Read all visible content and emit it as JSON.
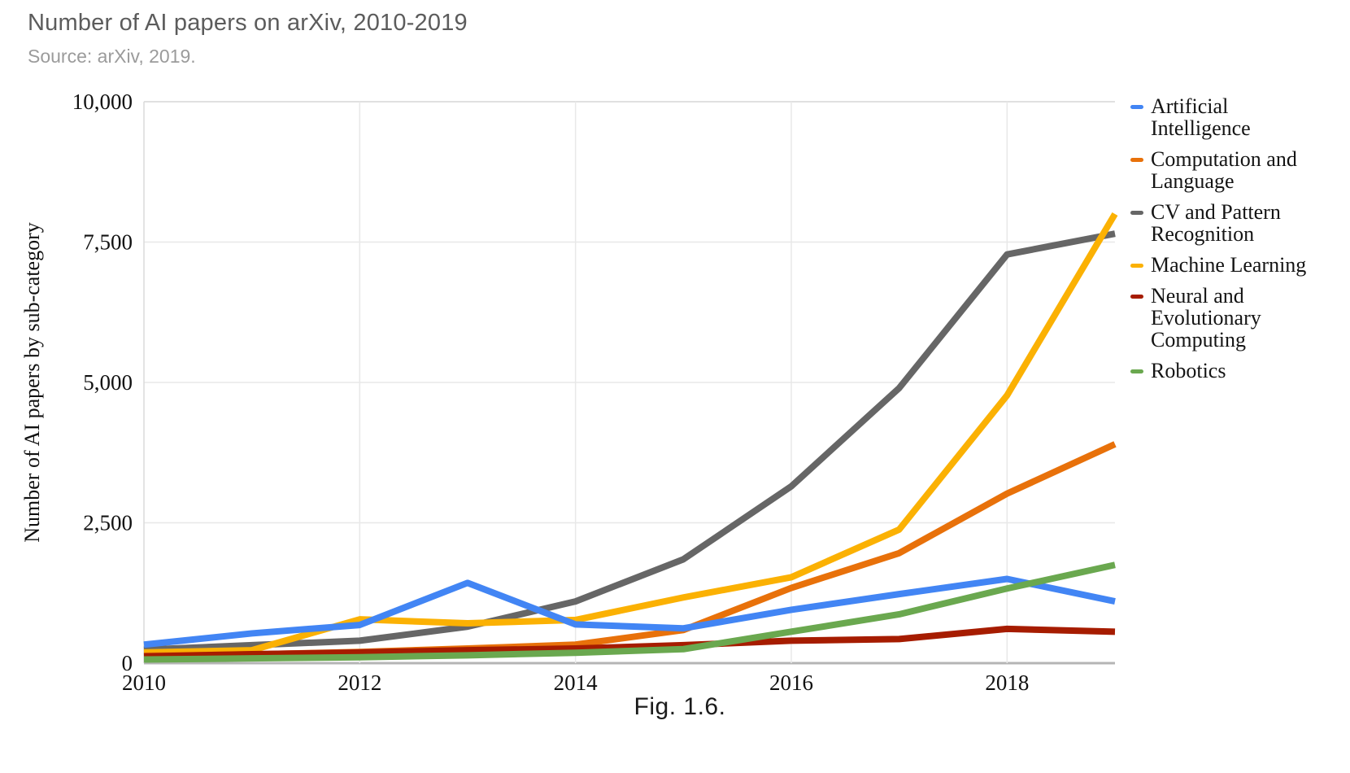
{
  "header": {
    "title": "Number of AI papers on arXiv, 2010-2019",
    "subtitle": "Source: arXiv, 2019."
  },
  "caption": "Fig. 1.6.",
  "chart_data": {
    "type": "line",
    "title": "Number of AI papers on arXiv, 2010-2019",
    "xlabel": "",
    "ylabel": "Number of AI papers by sub-category",
    "x": [
      2010,
      2011,
      2012,
      2013,
      2014,
      2015,
      2016,
      2017,
      2018,
      2019
    ],
    "x_tick_years": [
      2010,
      2012,
      2014,
      2016,
      2018
    ],
    "x_tick_labels": [
      "2010",
      "2012",
      "2014",
      "2016",
      "2018"
    ],
    "y_ticks": [
      0,
      2500,
      5000,
      7500,
      10000
    ],
    "y_tick_labels": [
      "0",
      "2,500",
      "5,000",
      "7,500",
      "10,000"
    ],
    "xlim": [
      2010,
      2019
    ],
    "ylim": [
      0,
      10000
    ],
    "grid": true,
    "legend_position": "right",
    "series": [
      {
        "name": "Artificial Intelligence",
        "label_lines": [
          "Artificial",
          "Intelligence"
        ],
        "color": "#4285F4",
        "values": [
          330,
          530,
          680,
          1430,
          690,
          620,
          950,
          1230,
          1500,
          1100
        ]
      },
      {
        "name": "Computation and Language",
        "label_lines": [
          "Computation and",
          "Language"
        ],
        "color": "#E8710A",
        "values": [
          130,
          155,
          200,
          260,
          330,
          590,
          1340,
          1960,
          3020,
          3900
        ]
      },
      {
        "name": "CV and Pattern Recognition",
        "label_lines": [
          "CV and Pattern",
          "Recognition"
        ],
        "color": "#666666",
        "values": [
          240,
          320,
          400,
          650,
          1100,
          1850,
          3150,
          4900,
          7280,
          7650
        ]
      },
      {
        "name": "Machine Learning",
        "label_lines": [
          "Machine Learning"
        ],
        "color": "#FBB103",
        "values": [
          190,
          230,
          780,
          710,
          770,
          1170,
          1530,
          2380,
          4770,
          8000
        ]
      },
      {
        "name": "Neural and Evolutionary Computing",
        "label_lines": [
          "Neural and",
          "Evolutionary",
          "Computing"
        ],
        "color": "#A61C00",
        "values": [
          120,
          160,
          190,
          230,
          260,
          320,
          400,
          430,
          610,
          560
        ]
      },
      {
        "name": "Robotics",
        "label_lines": [
          "Robotics"
        ],
        "color": "#6AA84F",
        "values": [
          65,
          85,
          105,
          140,
          185,
          250,
          560,
          870,
          1330,
          1750
        ]
      }
    ],
    "draw_order": [
      2,
      3,
      1,
      4,
      0,
      5
    ],
    "colors": {
      "grid": "#E8E8E8",
      "plot_border": "#DADADA",
      "baseline": "#B5B5B5",
      "title_text": "#5c5c5c",
      "subtitle_text": "#9b9b9b"
    }
  }
}
